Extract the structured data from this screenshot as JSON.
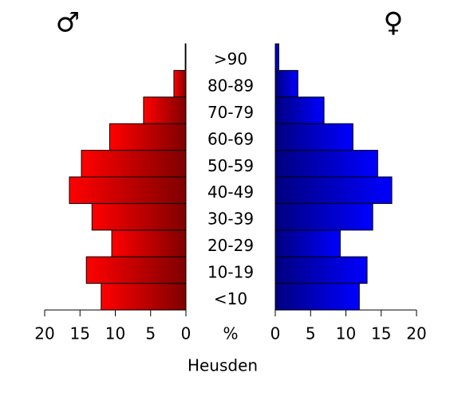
{
  "chart_data": {
    "type": "pyramid",
    "xlabel": "Heusden",
    "center_label": "%",
    "categories": [
      "<10",
      "10-19",
      "20-29",
      "30-39",
      "40-49",
      "50-59",
      "60-69",
      "70-79",
      "80-89",
      ">90"
    ],
    "series": [
      {
        "name": "♂",
        "color": "#ff0000",
        "values": [
          12.0,
          14.1,
          10.5,
          13.3,
          16.5,
          14.8,
          10.8,
          6.0,
          1.7,
          0.1
        ]
      },
      {
        "name": "♀",
        "color": "#0000ff",
        "values": [
          11.9,
          13.0,
          9.2,
          13.8,
          16.5,
          14.5,
          11.0,
          6.9,
          3.2,
          0.5
        ]
      }
    ],
    "xlim": [
      0,
      20
    ],
    "xticks": [
      0,
      5,
      10,
      15,
      20
    ]
  }
}
